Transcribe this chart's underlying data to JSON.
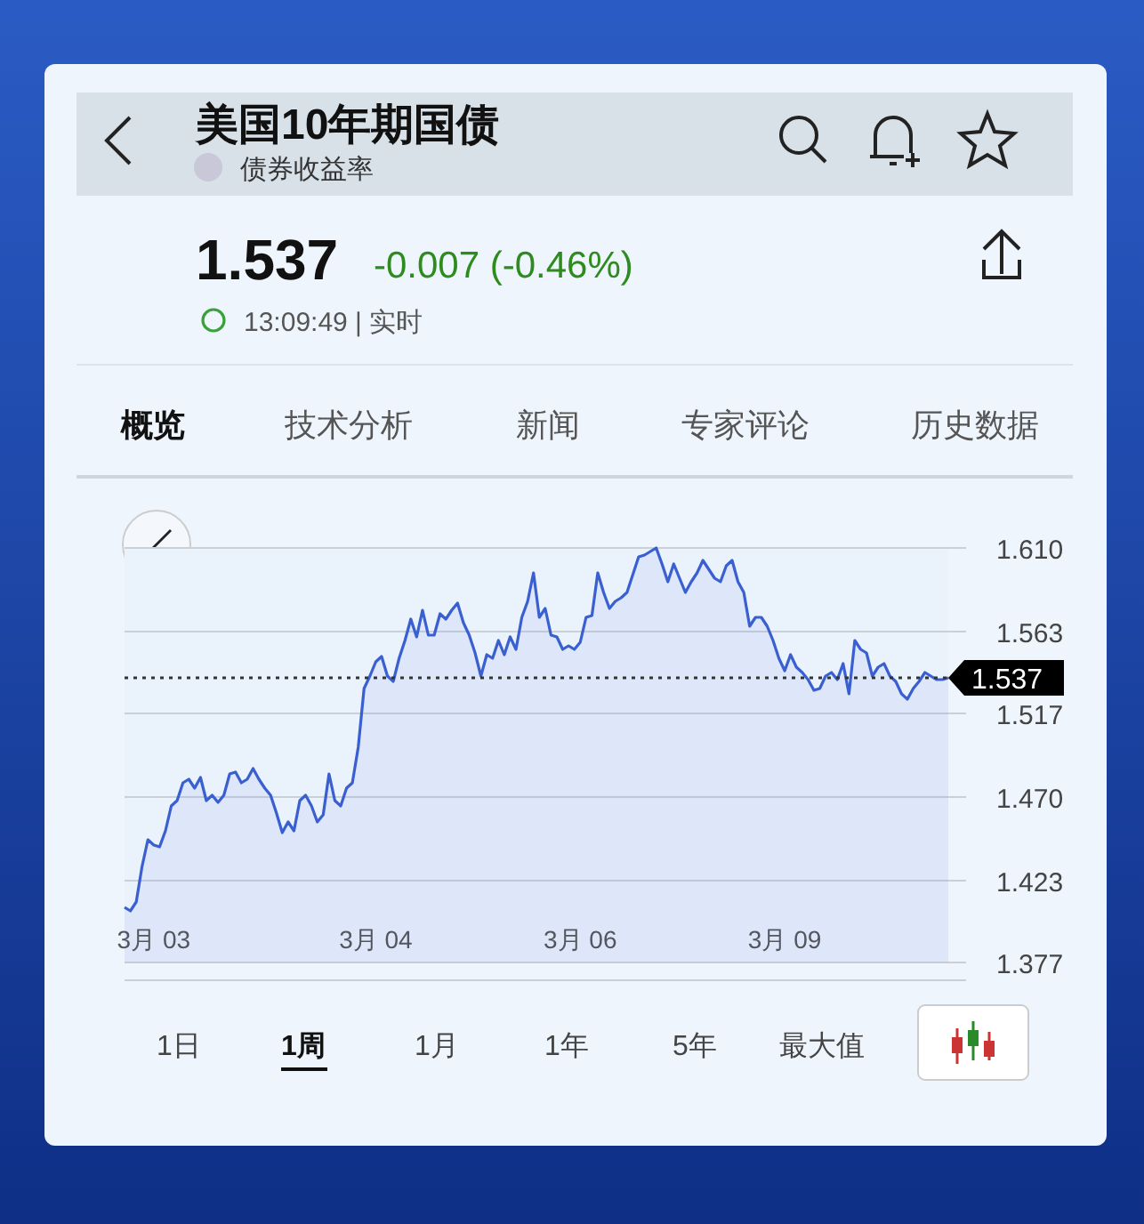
{
  "chart_data": {
    "type": "area",
    "title": "美国10年期国债",
    "subtitle": "债券收益率",
    "annotations": [
      "1.537",
      "-0.007 (-0.46%)",
      "13:09:49 | 实时",
      "概览",
      "技术分析",
      "新闻",
      "专家评论",
      "历史数据",
      "1日",
      "1周",
      "1月",
      "1年",
      "5年",
      "最大值"
    ],
    "series": [
      {
        "color": "#3a5fd0",
        "values": [
          1.408,
          1.406,
          1.411,
          1.431,
          1.446,
          1.443,
          1.442,
          1.451,
          1.465,
          1.468,
          1.478,
          1.48,
          1.475,
          1.481,
          1.468,
          1.471,
          1.467,
          1.471,
          1.483,
          1.484,
          1.478,
          1.48,
          1.486,
          1.48,
          1.475,
          1.471,
          1.461,
          1.45,
          1.456,
          1.451,
          1.468,
          1.471,
          1.465,
          1.456,
          1.46,
          1.483,
          1.468,
          1.465,
          1.475,
          1.478,
          1.498,
          1.531,
          1.538,
          1.546,
          1.549,
          1.538,
          1.535,
          1.548,
          1.558,
          1.57,
          1.56,
          1.575,
          1.561,
          1.561,
          1.573,
          1.57,
          1.575,
          1.579,
          1.568,
          1.561,
          1.551,
          1.538,
          1.55,
          1.548,
          1.558,
          1.55,
          1.56,
          1.553,
          1.571,
          1.58,
          1.596,
          1.571,
          1.576,
          1.561,
          1.56,
          1.553,
          1.555,
          1.553,
          1.557,
          1.571,
          1.572,
          1.596,
          1.585,
          1.576,
          1.58,
          1.582,
          1.585,
          1.595,
          1.605,
          1.606,
          1.608,
          1.61,
          1.601,
          1.591,
          1.601,
          1.593,
          1.585,
          1.591,
          1.596,
          1.603,
          1.598,
          1.593,
          1.591,
          1.6,
          1.603,
          1.591,
          1.585,
          1.566,
          1.571,
          1.571,
          1.566,
          1.558,
          1.548,
          1.541,
          1.55,
          1.543,
          1.54,
          1.536,
          1.53,
          1.531,
          1.538,
          1.54,
          1.536,
          1.545,
          1.528,
          1.558,
          1.553,
          1.551,
          1.538,
          1.543,
          1.545,
          1.538,
          1.535,
          1.528,
          1.525,
          1.531,
          1.535,
          1.54,
          1.538,
          1.536,
          1.536,
          1.537
        ]
      }
    ],
    "categories": [
      null,
      null,
      null,
      null,
      null,
      "3月 03",
      null,
      null,
      null,
      null,
      null,
      null,
      null,
      null,
      null,
      null,
      null,
      null,
      null,
      null,
      null,
      null,
      null,
      null,
      null,
      null,
      null,
      null,
      null,
      null,
      null,
      null,
      null,
      null,
      null,
      null,
      null,
      null,
      null,
      null,
      null,
      null,
      null,
      "3月 04",
      null,
      null,
      null,
      null,
      null,
      null,
      null,
      null,
      null,
      null,
      null,
      null,
      null,
      null,
      null,
      null,
      null,
      null,
      null,
      null,
      null,
      null,
      null,
      null,
      null,
      null,
      null,
      null,
      null,
      null,
      null,
      null,
      null,
      null,
      "3月 06",
      null,
      null,
      null,
      null,
      null,
      null,
      null,
      null,
      null,
      null,
      null,
      null,
      null,
      null,
      null,
      null,
      null,
      null,
      null,
      null,
      null,
      null,
      null,
      null,
      null,
      null,
      null,
      null,
      null,
      null,
      null,
      null,
      null,
      null,
      "3月 09",
      null,
      null,
      null,
      null,
      null,
      null,
      null,
      null,
      null,
      null,
      null,
      null,
      null,
      null,
      null,
      null,
      null,
      null,
      null,
      null,
      null,
      null,
      null,
      null,
      null,
      null,
      null,
      null
    ],
    "ylim": [
      1.377,
      1.61
    ],
    "yticks": [
      1.377,
      1.423,
      {
        "value": 1.47,
        "label": "1.470"
      },
      1.517,
      1.563,
      {
        "value": 1.61,
        "label": "1.610"
      }
    ],
    "grid": "y",
    "ref_lines": [
      {
        "axis": "y",
        "value": 1.537,
        "label": "1.537",
        "line_style": "dotted",
        "color": "#333333"
      }
    ]
  }
}
